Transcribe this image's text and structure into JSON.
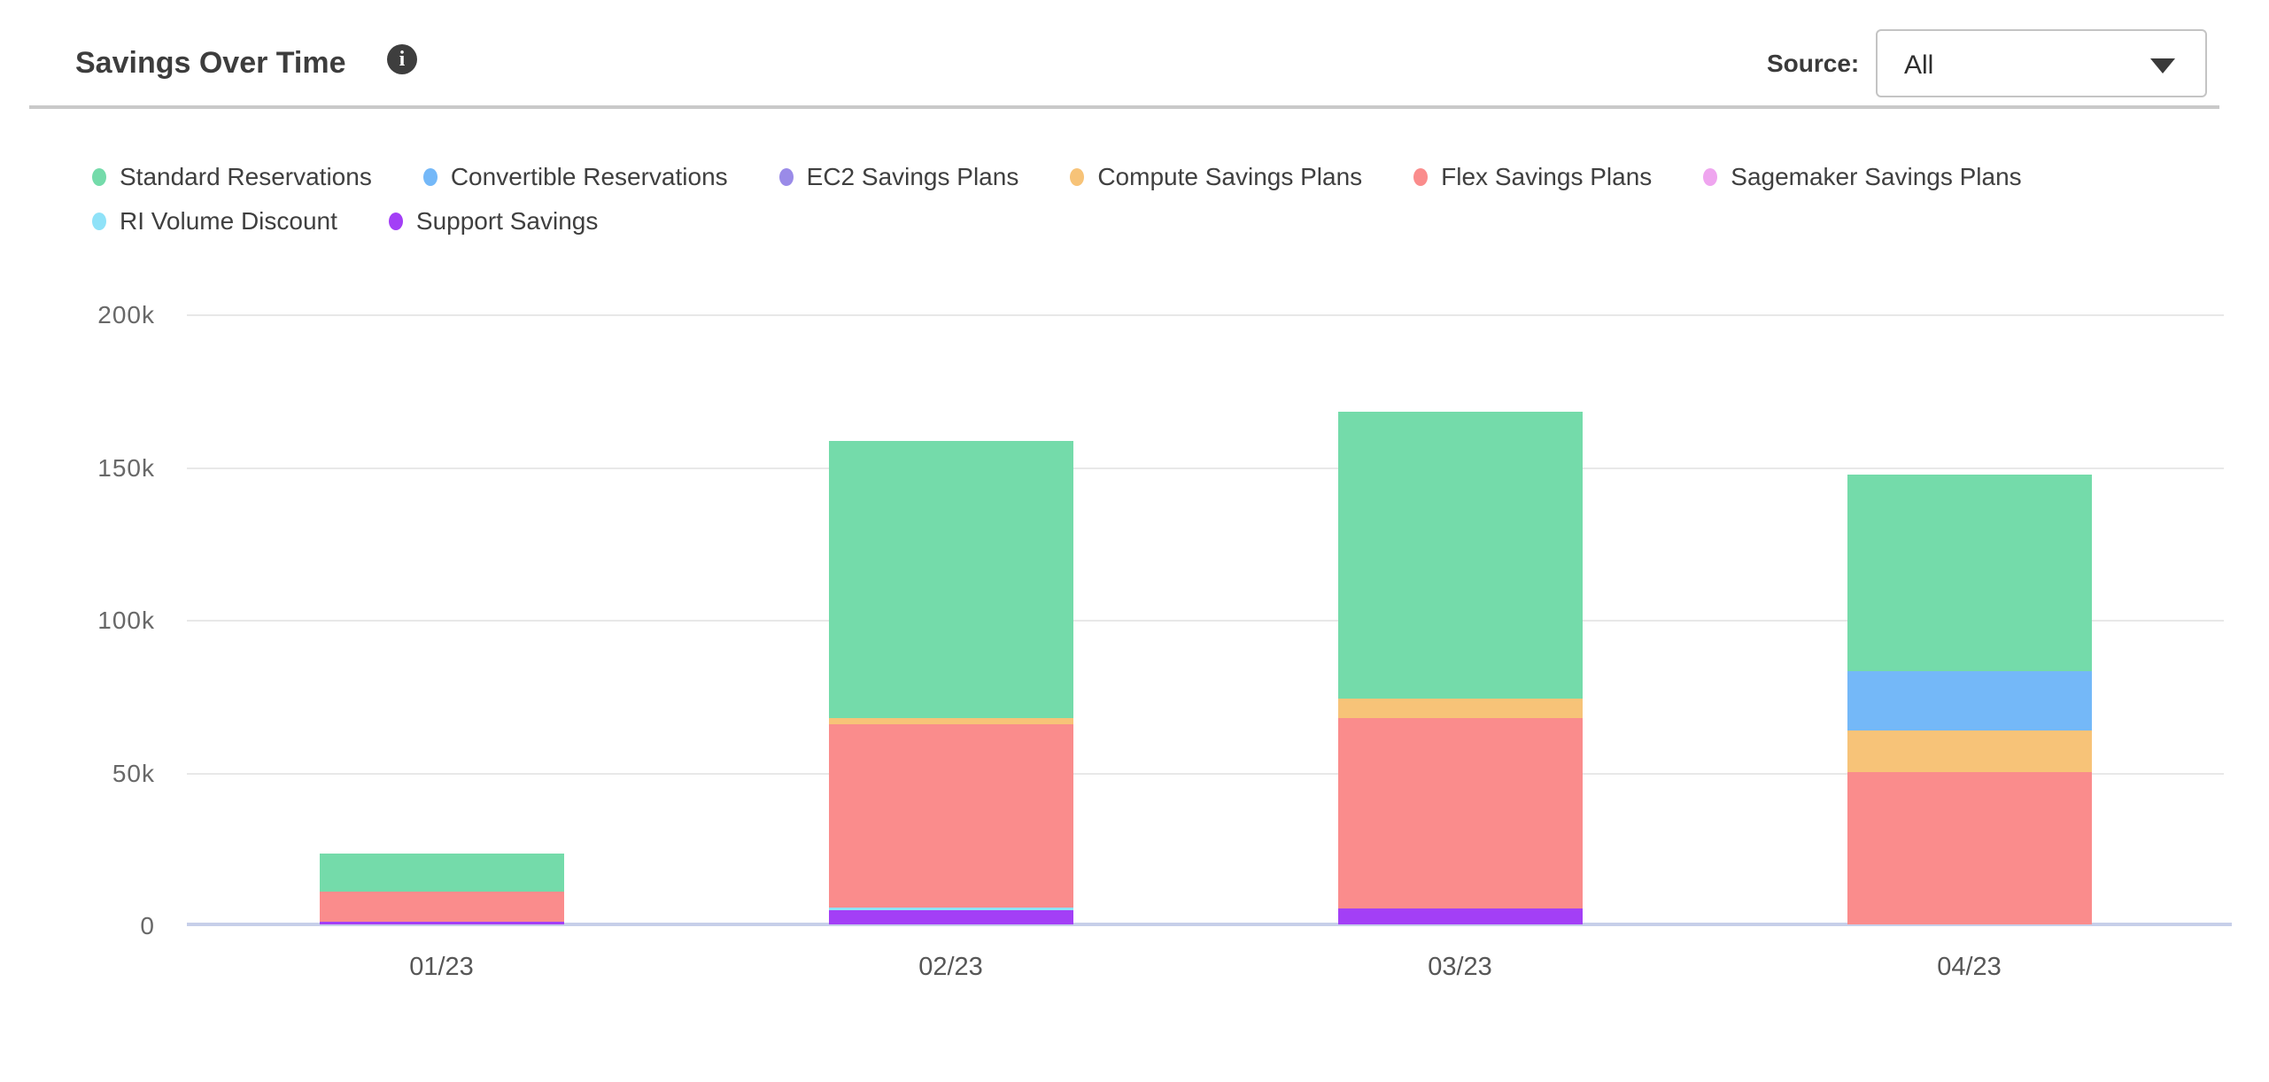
{
  "header": {
    "title": "Savings Over Time",
    "source_label": "Source:",
    "source_value": "All",
    "info_glyph": "i"
  },
  "legend": {
    "items": [
      {
        "label": "Standard Reservations"
      },
      {
        "label": "Convertible Reservations"
      },
      {
        "label": "EC2 Savings Plans"
      },
      {
        "label": "Compute Savings Plans"
      },
      {
        "label": "Flex Savings Plans"
      },
      {
        "label": "Sagemaker Savings Plans"
      },
      {
        "label": "RI Volume Discount"
      },
      {
        "label": "Support Savings"
      }
    ]
  },
  "chart_data": {
    "type": "bar",
    "stacked": true,
    "title": "Savings Over Time",
    "xlabel": "",
    "ylabel": "",
    "categories": [
      "01/23",
      "02/23",
      "03/23",
      "04/23"
    ],
    "series": [
      {
        "name": "Standard Reservations",
        "color": "#74dbaa",
        "values": [
          12300,
          90600,
          93700,
          64500
        ]
      },
      {
        "name": "Convertible Reservations",
        "color": "#74b8f8",
        "values": [
          0,
          0,
          0,
          19300
        ]
      },
      {
        "name": "EC2 Savings Plans",
        "color": "#9a8be8",
        "values": [
          0,
          0,
          0,
          0
        ]
      },
      {
        "name": "Compute Savings Plans",
        "color": "#f7c378",
        "values": [
          0,
          2200,
          6400,
          13500
        ]
      },
      {
        "name": "Flex Savings Plans",
        "color": "#fa8c8c",
        "values": [
          9800,
          59800,
          62300,
          50000
        ]
      },
      {
        "name": "Sagemaker Savings Plans",
        "color": "#efa5ef",
        "values": [
          0,
          0,
          0,
          0
        ]
      },
      {
        "name": "RI Volume Discount",
        "color": "#8fe2f8",
        "values": [
          0,
          1000,
          0,
          0
        ]
      },
      {
        "name": "Support Savings",
        "color": "#a33ff6",
        "values": [
          1000,
          4600,
          5300,
          0
        ]
      }
    ],
    "stack_order_bottom_to_top": [
      "Support Savings",
      "RI Volume Discount",
      "Sagemaker Savings Plans",
      "Flex Savings Plans",
      "Compute Savings Plans",
      "EC2 Savings Plans",
      "Convertible Reservations",
      "Standard Reservations"
    ],
    "totals": [
      23100,
      158200,
      167700,
      147300
    ],
    "ylim": [
      0,
      200000
    ],
    "yticks": [
      {
        "value": 0,
        "label": "0"
      },
      {
        "value": 50000,
        "label": "50k"
      },
      {
        "value": 100000,
        "label": "100k"
      },
      {
        "value": 150000,
        "label": "150k"
      },
      {
        "value": 200000,
        "label": "200k"
      }
    ],
    "grid": true,
    "legend_position": "top"
  },
  "colors": {
    "axis_line": "#c7cfe9",
    "gridline": "#e8e8e8",
    "title_text": "#3d3d3d",
    "tick_text": "#686868"
  }
}
